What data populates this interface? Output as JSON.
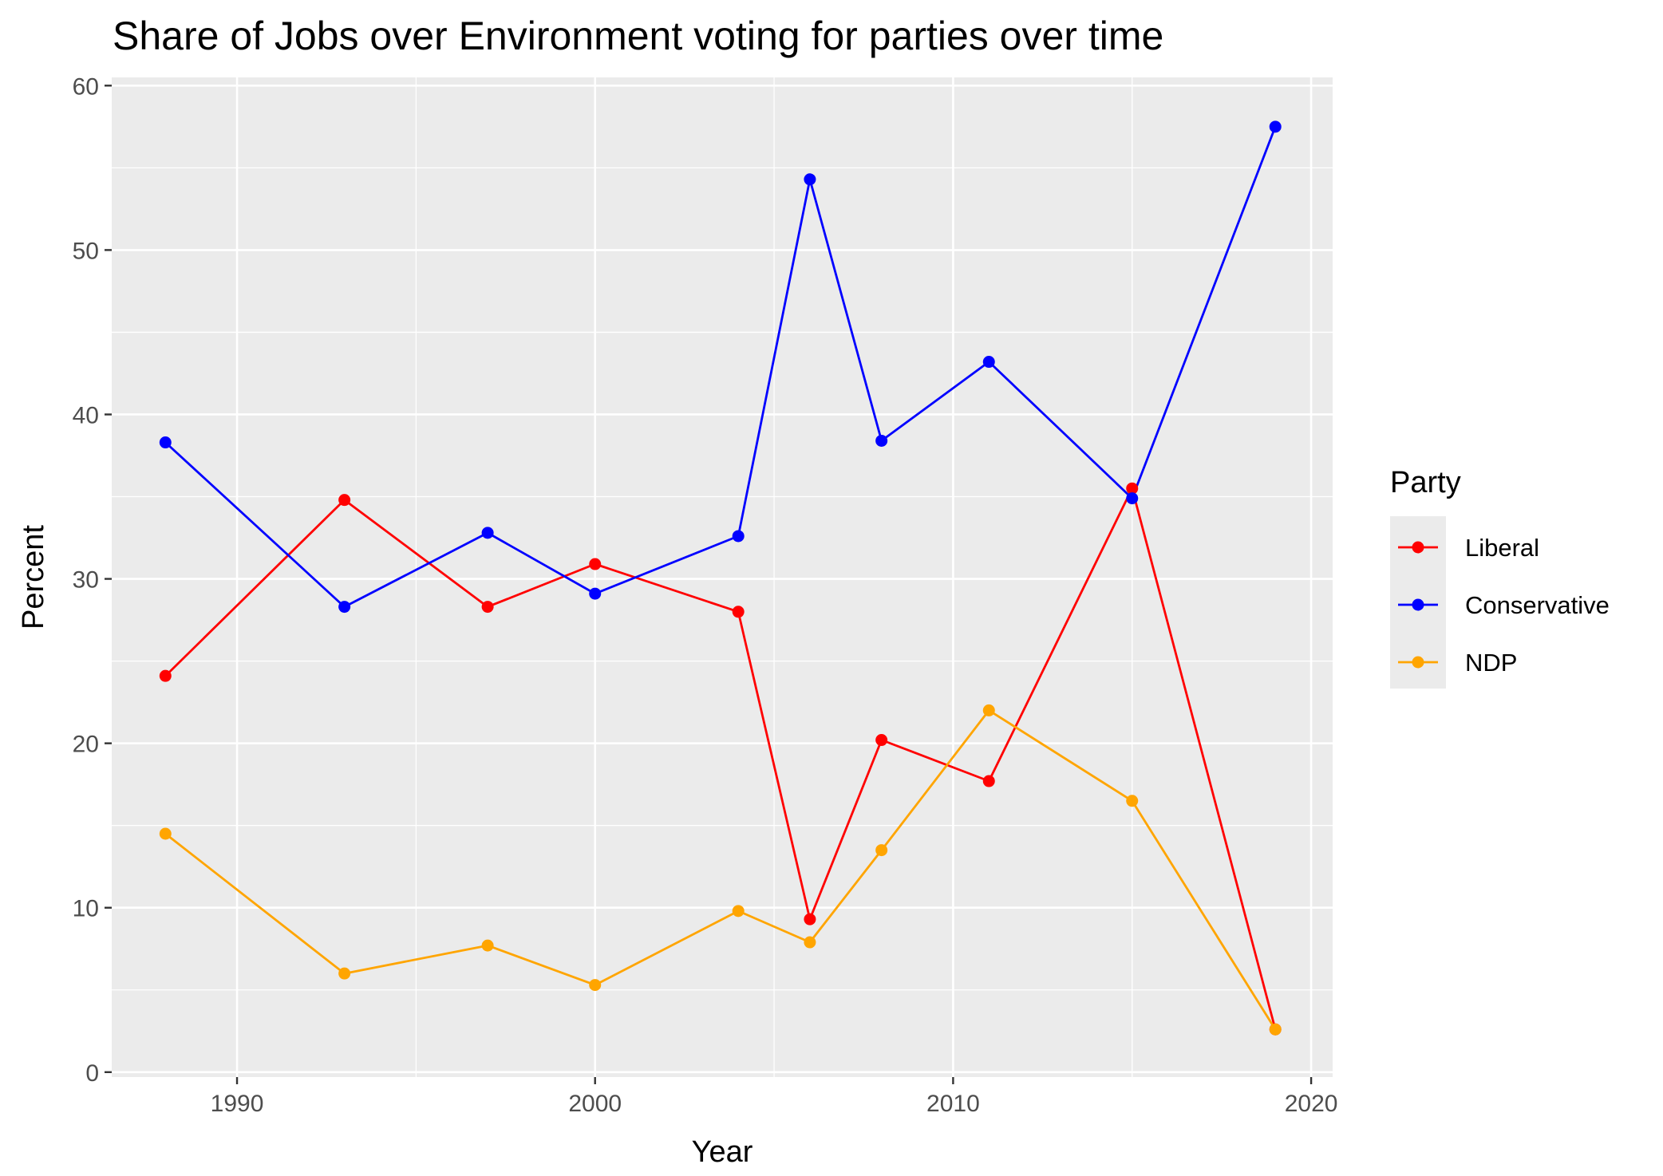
{
  "chart_data": {
    "type": "line",
    "title": "Share of Jobs over Environment voting for parties over time",
    "xlabel": "Year",
    "ylabel": "Percent",
    "xlim": [
      1986.5,
      2020.6
    ],
    "ylim": [
      -0.3,
      60.5
    ],
    "x_ticks": [
      1990,
      2000,
      2010,
      2020
    ],
    "y_ticks": [
      0,
      10,
      20,
      30,
      40,
      50,
      60
    ],
    "x_tick_labels": [
      "1990",
      "2000",
      "2010",
      "2020"
    ],
    "y_tick_labels": [
      "0",
      "10",
      "20",
      "30",
      "40",
      "50",
      "60"
    ],
    "grid": true,
    "legend": {
      "title": "Party",
      "placement": "right"
    },
    "x": [
      1988,
      1993,
      1997,
      2000,
      2004,
      2006,
      2008,
      2011,
      2015,
      2019
    ],
    "series": [
      {
        "name": "Liberal",
        "color": "#ff0000",
        "values": [
          24.1,
          34.8,
          28.3,
          30.9,
          28.0,
          9.3,
          20.2,
          17.7,
          35.5,
          2.6
        ]
      },
      {
        "name": "Conservative",
        "color": "#0000ff",
        "values": [
          38.3,
          28.3,
          32.8,
          29.1,
          32.6,
          54.3,
          38.4,
          43.2,
          34.9,
          57.5
        ]
      },
      {
        "name": "NDP",
        "color": "#ffa500",
        "values": [
          14.5,
          6.0,
          7.7,
          5.3,
          9.8,
          7.9,
          13.5,
          22.0,
          16.5,
          2.6
        ]
      }
    ]
  }
}
